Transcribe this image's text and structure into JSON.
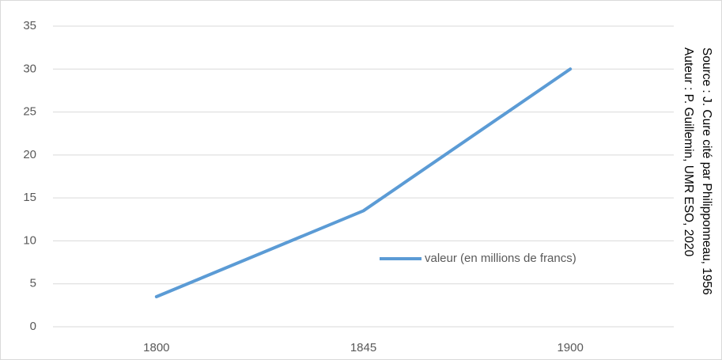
{
  "chart_data": {
    "type": "line",
    "categories": [
      "1800",
      "1845",
      "1900"
    ],
    "series": [
      {
        "name": "valeur (en millions de francs)",
        "color": "#5b9bd5",
        "values": [
          3.5,
          13.5,
          30
        ]
      }
    ],
    "ylim": [
      0,
      35
    ],
    "yticks": [
      0,
      5,
      10,
      15,
      20,
      25,
      30,
      35
    ],
    "grid": true,
    "legend": "right",
    "annotations": [
      "Source : J. Cure cité par Philipponneau, 1956",
      "Auteur : P. Guillemin, UMR ESO, 2020"
    ]
  }
}
